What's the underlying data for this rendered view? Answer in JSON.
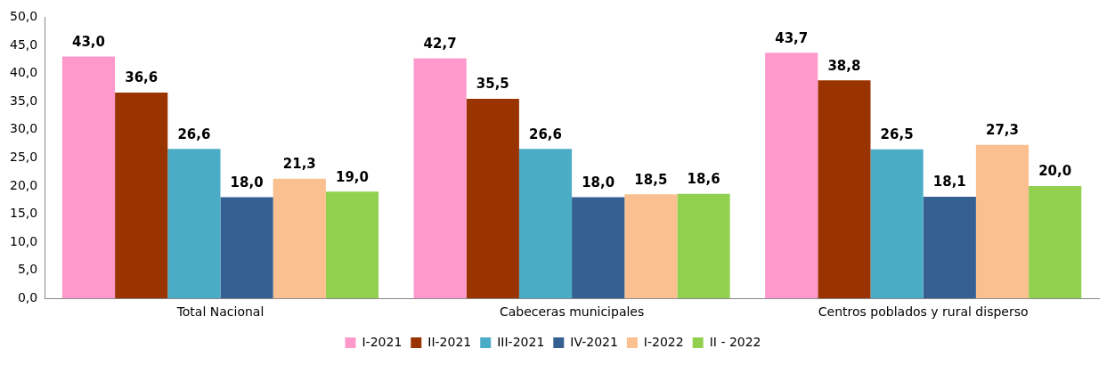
{
  "chart_data": {
    "type": "bar",
    "categories": [
      "Total Nacional",
      "Cabeceras municipales",
      "Centros poblados y rural disperso"
    ],
    "series": [
      {
        "name": "I-2021",
        "color": "#ff99cc",
        "values": [
          43.0,
          42.7,
          43.7
        ],
        "value_labels": [
          "43,0",
          "42,7",
          "43,7"
        ]
      },
      {
        "name": "II-2021",
        "color": "#993300",
        "values": [
          36.6,
          35.5,
          38.8
        ],
        "value_labels": [
          "36,6",
          "35,5",
          "38,8"
        ]
      },
      {
        "name": "III-2021",
        "color": "#4bacc6",
        "values": [
          26.6,
          26.6,
          26.5
        ],
        "value_labels": [
          "26,6",
          "26,6",
          "26,5"
        ]
      },
      {
        "name": "IV-2021",
        "color": "#366092",
        "values": [
          18.0,
          18.0,
          18.1
        ],
        "value_labels": [
          "18,0",
          "18,0",
          "18,1"
        ]
      },
      {
        "name": "I-2022",
        "color": "#fac090",
        "values": [
          21.3,
          18.5,
          27.3
        ],
        "value_labels": [
          "21,3",
          "18,5",
          "27,3"
        ]
      },
      {
        "name": "II - 2022",
        "color": "#92d050",
        "values": [
          19.0,
          18.6,
          20.0
        ],
        "value_labels": [
          "19,0",
          "18,6",
          "20,0"
        ]
      }
    ],
    "ylim": [
      0,
      50
    ],
    "yticks": [
      {
        "value": 0,
        "label": "0,0"
      },
      {
        "value": 5,
        "label": "5,0"
      },
      {
        "value": 10,
        "label": "10,0"
      },
      {
        "value": 15,
        "label": "15,0"
      },
      {
        "value": 20,
        "label": "20,0"
      },
      {
        "value": 25,
        "label": "25,0"
      },
      {
        "value": 30,
        "label": "30,0"
      },
      {
        "value": 35,
        "label": "35,0"
      },
      {
        "value": 40,
        "label": "40,0"
      },
      {
        "value": 45,
        "label": "45,0"
      },
      {
        "value": 50,
        "label": "50,0"
      }
    ],
    "grid": false,
    "legend": "bottom"
  }
}
